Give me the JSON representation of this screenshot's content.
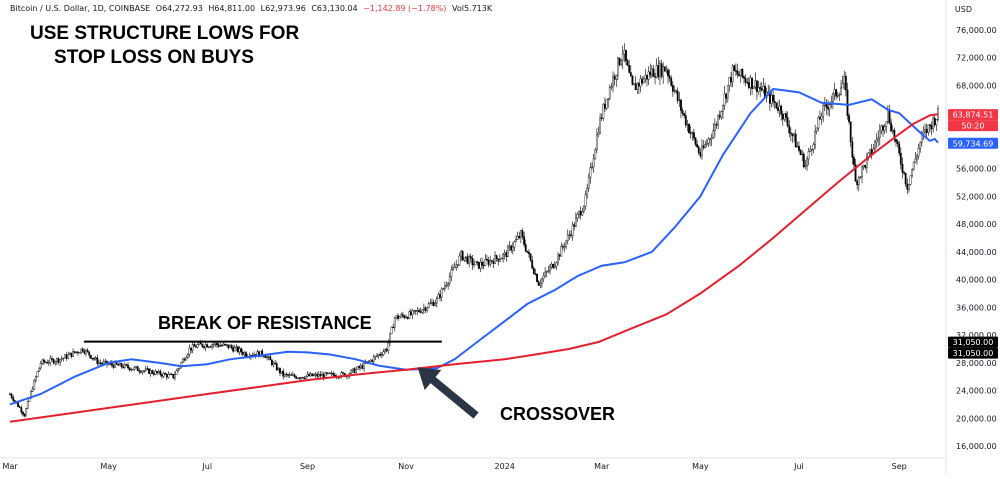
{
  "header": {
    "symbol": "Bitcoin / U.S. Dollar, 1D, COINBASE",
    "open": "O64,272.93",
    "high": "H64,811.00",
    "low": "L62,973.96",
    "close": "C63,130.04",
    "change": "−1,142.89 (−1.78%)",
    "volume": "Vol5.713K",
    "currency": "USD"
  },
  "annotations": {
    "title_line1": "USE STRUCTURE LOWS FOR",
    "title_line2": "STOP LOSS ON BUYS",
    "resistance": "BREAK OF RESISTANCE",
    "crossover": "CROSSOVER"
  },
  "colors": {
    "up": "#089981",
    "down": "#f23645",
    "blue_ma": "#2962ff",
    "red_ma": "#e5202e",
    "resistance_line": "#000000",
    "arrow": "#2a3646"
  },
  "chart_data": {
    "type": "line",
    "ylim": [
      14000,
      78000
    ],
    "scale": "linear",
    "grid": false,
    "price_axis_labels": [
      "76,000.00",
      "72,000.00",
      "68,000.00",
      "64,000.00",
      "60,000.00",
      "56,000.00",
      "52,000.00",
      "48,000.00",
      "44,000.00",
      "40,000.00",
      "36,000.00",
      "32,000.00",
      "28,000.00",
      "24,000.00",
      "20,000.00",
      "16,000.00"
    ],
    "price_axis_values": [
      76000,
      72000,
      68000,
      64000,
      60000,
      56000,
      52000,
      48000,
      44000,
      40000,
      36000,
      32000,
      28000,
      24000,
      20000,
      16000
    ],
    "time_axis_labels": [
      "Mar",
      "May",
      "Jul",
      "Sep",
      "Nov",
      "2024",
      "Mar",
      "May",
      "Jul",
      "Sep"
    ],
    "time_axis_dates": [
      "2023-03-01",
      "2023-05-01",
      "2023-07-01",
      "2023-09-01",
      "2023-11-01",
      "2024-01-01",
      "2024-03-01",
      "2024-05-01",
      "2024-07-01",
      "2024-09-01"
    ],
    "x_range": [
      "2023-03-01",
      "2024-09-25"
    ],
    "price_series": {
      "name": "",
      "dates": [
        "2023-03-01",
        "2023-03-10",
        "2023-03-15",
        "2023-03-20",
        "2023-04-01",
        "2023-04-15",
        "2023-04-25",
        "2023-05-10",
        "2023-05-25",
        "2023-06-10",
        "2023-06-20",
        "2023-06-25",
        "2023-07-05",
        "2023-07-15",
        "2023-07-25",
        "2023-08-05",
        "2023-08-17",
        "2023-08-25",
        "2023-09-10",
        "2023-09-25",
        "2023-10-05",
        "2023-10-20",
        "2023-10-25",
        "2023-11-05",
        "2023-11-20",
        "2023-12-05",
        "2023-12-15",
        "2024-01-01",
        "2024-01-11",
        "2024-01-22",
        "2024-02-01",
        "2024-02-10",
        "2024-02-20",
        "2024-02-28",
        "2024-03-05",
        "2024-03-14",
        "2024-03-20",
        "2024-04-01",
        "2024-04-10",
        "2024-04-20",
        "2024-05-01",
        "2024-05-10",
        "2024-05-21",
        "2024-06-05",
        "2024-06-20",
        "2024-07-05",
        "2024-07-15",
        "2024-07-29",
        "2024-08-05",
        "2024-08-15",
        "2024-08-25",
        "2024-09-06",
        "2024-09-15",
        "2024-09-25"
      ],
      "values": [
        23500,
        20500,
        24500,
        28000,
        28500,
        30000,
        28000,
        27500,
        26800,
        26000,
        30000,
        30500,
        30700,
        30300,
        29300,
        29300,
        26200,
        26000,
        26200,
        26300,
        27500,
        30000,
        34500,
        35000,
        37000,
        43500,
        42000,
        43500,
        46500,
        39500,
        42500,
        46500,
        51500,
        62000,
        67000,
        73000,
        67500,
        70000,
        70500,
        64000,
        58000,
        62000,
        70000,
        68000,
        64500,
        56500,
        64000,
        68500,
        54000,
        58500,
        64000,
        53500,
        60500,
        63874.51
      ]
    },
    "moving_averages": [
      {
        "name": "",
        "label": "31,050.00",
        "current": "59,734.69",
        "values": [
          22000,
          23500,
          26000,
          28000,
          28500,
          28000,
          27500,
          27800,
          28500,
          29000,
          29600,
          29500,
          29200,
          28500,
          27600,
          27000,
          27200,
          28500,
          31000,
          34000,
          36500,
          38500,
          40500,
          42000,
          42500,
          44000,
          47500,
          52000,
          58000,
          64000,
          67500,
          67000,
          65500,
          65200,
          66000,
          64500,
          64000,
          62500,
          61000,
          60000,
          60300,
          59734.69
        ],
        "dates": [
          "2023-03-01",
          "2023-03-20",
          "2023-04-10",
          "2023-05-01",
          "2023-05-15",
          "2023-06-01",
          "2023-06-15",
          "2023-07-01",
          "2023-07-15",
          "2023-08-01",
          "2023-08-20",
          "2023-09-01",
          "2023-09-15",
          "2023-10-01",
          "2023-10-15",
          "2023-11-01",
          "2023-11-20",
          "2023-12-01",
          "2023-12-15",
          "2024-01-01",
          "2024-01-15",
          "2024-02-01",
          "2024-02-15",
          "2024-03-01",
          "2024-03-15",
          "2024-04-01",
          "2024-04-15",
          "2024-05-01",
          "2024-05-15",
          "2024-06-01",
          "2024-06-15",
          "2024-07-01",
          "2024-07-15",
          "2024-08-01",
          "2024-08-15",
          "2024-08-25",
          "2024-09-01",
          "2024-09-08",
          "2024-09-15",
          "2024-09-20",
          "2024-09-23",
          "2024-09-25"
        ],
        "color": "#2962ff"
      },
      {
        "name": "",
        "label": "31,050.00",
        "current": "63,874.51",
        "values": [
          19500,
          20500,
          21500,
          22500,
          23500,
          24500,
          25500,
          26300,
          27000,
          27800,
          28500,
          29200,
          30000,
          31000,
          33000,
          35000,
          38000,
          42000,
          46000,
          50000,
          54000,
          58000,
          61000,
          62500,
          63700,
          63874.51
        ],
        "dates": [
          "2023-03-01",
          "2023-04-01",
          "2023-05-01",
          "2023-06-01",
          "2023-07-01",
          "2023-08-01",
          "2023-09-01",
          "2023-10-01",
          "2023-11-01",
          "2023-12-01",
          "2024-01-01",
          "2024-01-20",
          "2024-02-10",
          "2024-02-28",
          "2024-03-20",
          "2024-04-10",
          "2024-05-01",
          "2024-05-25",
          "2024-06-15",
          "2024-07-05",
          "2024-07-25",
          "2024-08-15",
          "2024-09-01",
          "2024-09-10",
          "2024-09-20",
          "2024-09-25"
        ],
        "color": "#e5202e"
      }
    ],
    "price_labels": [
      {
        "text": "63,874.51",
        "value": 63874.51,
        "color": "#f23645"
      },
      {
        "text": "50:20",
        "value": 63874.51,
        "color": "#f23645",
        "offset": "below"
      },
      {
        "text": "59,734.69",
        "value": 59734.69,
        "color": "#2962ff"
      },
      {
        "text": "31,050.00",
        "value": 31050,
        "color": "#000000"
      },
      {
        "text": "31,050.00",
        "value": 31050,
        "color": "#000000",
        "offset": "below"
      }
    ],
    "resistance_level": {
      "value": 31050,
      "from": "2023-04-25",
      "to": "2023-11-20"
    },
    "arrow": {
      "tip_date": "2023-11-05",
      "tip_value": 28500,
      "tail_date": "2023-12-05",
      "tail_value": 24000
    }
  }
}
